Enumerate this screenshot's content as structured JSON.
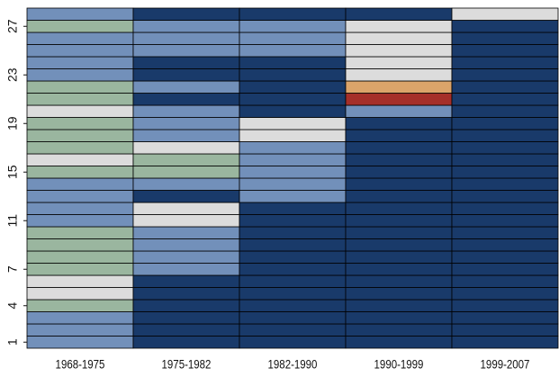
{
  "chart_data": {
    "type": "heatmap",
    "categories": [
      "1968-1975",
      "1975-1982",
      "1982-1990",
      "1990-1999",
      "1999-2007"
    ],
    "ylim": [
      0.5,
      28.5
    ],
    "yticks": [
      1,
      4,
      7,
      11,
      15,
      19,
      23,
      27
    ],
    "colors": [
      "#193a6a",
      "#7290ba",
      "#9ab69f",
      "#dcdcdc",
      "#dba46a",
      "#a52f29"
    ],
    "z": [
      [
        1,
        0,
        0,
        0,
        0
      ],
      [
        1,
        0,
        0,
        0,
        0
      ],
      [
        1,
        0,
        0,
        0,
        0
      ],
      [
        2,
        0,
        0,
        0,
        0
      ],
      [
        3,
        0,
        0,
        0,
        0
      ],
      [
        3,
        0,
        0,
        0,
        0
      ],
      [
        2,
        1,
        0,
        0,
        0
      ],
      [
        2,
        1,
        0,
        0,
        0
      ],
      [
        2,
        1,
        0,
        0,
        0
      ],
      [
        2,
        1,
        0,
        0,
        0
      ],
      [
        1,
        3,
        0,
        0,
        0
      ],
      [
        1,
        3,
        0,
        0,
        0
      ],
      [
        1,
        0,
        1,
        0,
        0
      ],
      [
        1,
        1,
        1,
        0,
        0
      ],
      [
        2,
        2,
        1,
        0,
        0
      ],
      [
        3,
        2,
        1,
        0,
        0
      ],
      [
        2,
        3,
        1,
        0,
        0
      ],
      [
        2,
        1,
        3,
        0,
        0
      ],
      [
        2,
        1,
        3,
        0,
        0
      ],
      [
        3,
        1,
        0,
        1,
        0
      ],
      [
        2,
        0,
        0,
        5,
        0
      ],
      [
        2,
        1,
        0,
        4,
        0
      ],
      [
        1,
        0,
        0,
        3,
        0
      ],
      [
        1,
        0,
        0,
        3,
        0
      ],
      [
        1,
        1,
        1,
        3,
        0
      ],
      [
        1,
        1,
        1,
        3,
        0
      ],
      [
        2,
        1,
        1,
        3,
        0
      ],
      [
        1,
        0,
        0,
        0,
        3
      ]
    ]
  }
}
